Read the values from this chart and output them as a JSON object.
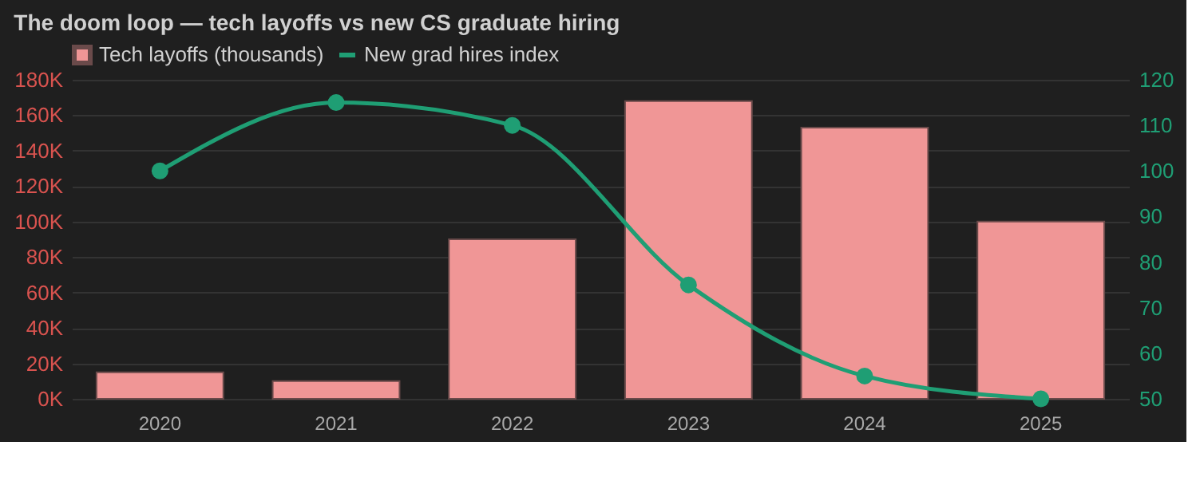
{
  "chart_data": {
    "type": "bar",
    "title": "The doom loop — tech layoffs vs new CS graduate hiring",
    "categories": [
      "2020",
      "2021",
      "2022",
      "2023",
      "2024",
      "2025"
    ],
    "series": [
      {
        "name": "Tech layoffs (thousands)",
        "color": "#f09696",
        "values": [
          15000,
          10000,
          90000,
          168000,
          153000,
          100000
        ]
      },
      {
        "name": "New grad hires index",
        "type": "line",
        "axis": "y2",
        "color": "#1f9e74",
        "values": [
          100,
          115,
          110,
          75,
          55,
          50
        ]
      }
    ],
    "ylim": [
      0,
      180000
    ],
    "yticks": [
      {
        "value": 0,
        "label": "0K"
      },
      {
        "value": 20000,
        "label": "20K"
      },
      {
        "value": 40000,
        "label": "40K"
      },
      {
        "value": 60000,
        "label": "60K"
      },
      {
        "value": 80000,
        "label": "80K"
      },
      {
        "value": 100000,
        "label": "100K"
      },
      {
        "value": 120000,
        "label": "120K"
      },
      {
        "value": 140000,
        "label": "140K"
      },
      {
        "value": 160000,
        "label": "160K"
      },
      {
        "value": 180000,
        "label": "180K"
      }
    ],
    "y2lim": [
      50,
      120
    ],
    "y2ticks": [
      50,
      60,
      70,
      80,
      90,
      100,
      110,
      120
    ],
    "grid": "y",
    "legend": "top left",
    "marker": "circle",
    "line_style": "solid"
  }
}
